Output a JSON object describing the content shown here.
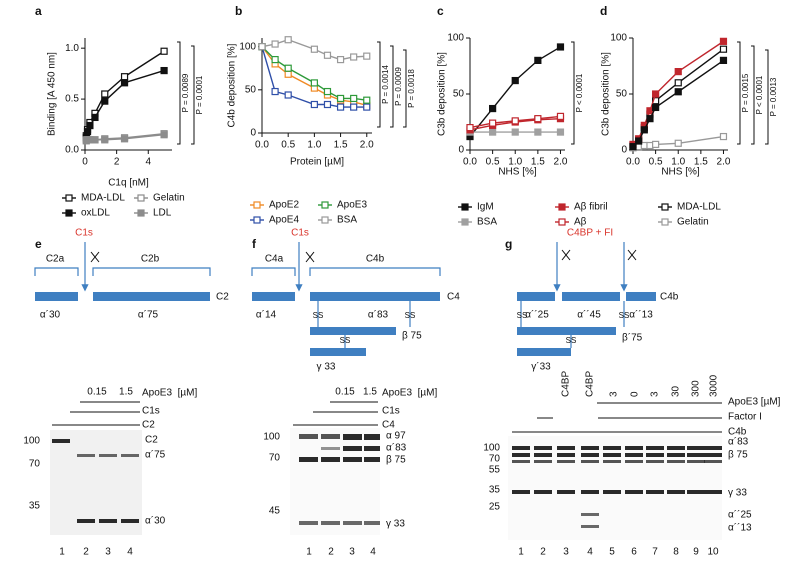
{
  "chart_data": [
    {
      "type": "line",
      "label": "a",
      "xlabel": "C1q [nM]",
      "ylabel": "Binding [A 450 nm]",
      "x": [
        0.08,
        0.16,
        0.31,
        0.63,
        1.25,
        2.5,
        5
      ],
      "xlim": [
        0,
        5.5
      ],
      "ylim": [
        0,
        1.1
      ],
      "xticks": [
        0,
        2,
        4
      ],
      "yticks": [
        {
          "value": 0,
          "label": "0.0"
        },
        0.5,
        {
          "value": 1,
          "label": "1.0"
        }
      ],
      "series": [
        {
          "name": "MDA-LDL",
          "color": "#111111",
          "markers": "open",
          "values": [
            0.14,
            0.2,
            0.27,
            0.36,
            0.55,
            0.72,
            0.97
          ]
        },
        {
          "name": "oxLDL",
          "color": "#111111",
          "markers": "filled",
          "values": [
            0.12,
            0.18,
            0.24,
            0.32,
            0.48,
            0.66,
            0.78
          ]
        },
        {
          "name": "Gelatin",
          "color": "#8c8c8c",
          "markers": "open",
          "values": [
            0.1,
            0.1,
            0.1,
            0.1,
            0.11,
            0.12,
            0.16
          ]
        },
        {
          "name": "LDL",
          "color": "#8c8c8c",
          "markers": "filled",
          "values": [
            0.09,
            0.1,
            0.1,
            0.1,
            0.1,
            0.11,
            0.15
          ]
        }
      ],
      "annotations": [
        "P = 0.0089",
        "P = 0.0001"
      ]
    },
    {
      "type": "line",
      "label": "b",
      "xlabel": "Protein [µM]",
      "ylabel": "C4b deposition [%]",
      "x": [
        0,
        0.25,
        0.5,
        1,
        1.25,
        1.5,
        1.75,
        2
      ],
      "xlim": [
        0,
        2.1
      ],
      "ylim": [
        0,
        110
      ],
      "xticks": [
        {
          "value": 0,
          "label": "0.0"
        },
        0.5,
        {
          "value": 1,
          "label": "1.0"
        },
        1.5,
        {
          "value": 2,
          "label": "2.0"
        }
      ],
      "yticks": [
        0,
        50,
        100
      ],
      "series": [
        {
          "name": "ApoE2",
          "color": "#f08a24",
          "markers": "open",
          "values": [
            100,
            80,
            68,
            52,
            44,
            38,
            36,
            32
          ]
        },
        {
          "name": "ApoE4",
          "color": "#2f4fa8",
          "markers": "open",
          "values": [
            100,
            48,
            44,
            33,
            33,
            30,
            30,
            30
          ]
        },
        {
          "name": "ApoE3",
          "color": "#2e9a3a",
          "markers": "open",
          "values": [
            100,
            85,
            75,
            58,
            48,
            40,
            40,
            38
          ]
        },
        {
          "name": "BSA",
          "color": "#999999",
          "markers": "open",
          "values": [
            100,
            103,
            108,
            97,
            90,
            85,
            88,
            89
          ]
        }
      ],
      "annotations": [
        "P = 0.0014",
        "P = 0.0009",
        "P = 0.0018"
      ]
    },
    {
      "type": "line",
      "label": "c",
      "xlabel": "NHS [%]",
      "ylabel": "C3b deposition [%]",
      "x": [
        0,
        0.5,
        1,
        1.5,
        2
      ],
      "xlim": [
        0,
        2.1
      ],
      "ylim": [
        0,
        100
      ],
      "xticks": [
        {
          "value": 0,
          "label": "0.0"
        },
        0.5,
        {
          "value": 1,
          "label": "1.0"
        },
        1.5,
        {
          "value": 2,
          "label": "2.0"
        }
      ],
      "yticks": [
        0,
        50,
        100
      ],
      "series": [
        {
          "name": "IgM",
          "color": "#111111",
          "markers": "filled",
          "values": [
            12,
            37,
            62,
            80,
            92
          ]
        },
        {
          "name": "BSA",
          "color": "#a0a0a0",
          "markers": "filled",
          "values": [
            16,
            16,
            16,
            16,
            16
          ]
        },
        {
          "name": "Aβ fibril",
          "color": "#c0262d",
          "markers": "filled",
          "values": [
            18,
            22,
            25,
            27,
            28
          ]
        },
        {
          "name": "Aβ",
          "color": "#c0262d",
          "markers": "open",
          "values": [
            20,
            24,
            26,
            28,
            30
          ]
        }
      ],
      "annotations": [
        "P < 0.0001"
      ]
    },
    {
      "type": "line",
      "label": "d",
      "xlabel": "NHS [%]",
      "ylabel": "C3b deposition [%]",
      "x": [
        0,
        0.125,
        0.25,
        0.375,
        0.5,
        1,
        2
      ],
      "xlim": [
        0,
        2.1
      ],
      "ylim": [
        0,
        100
      ],
      "xticks": [
        {
          "value": 0,
          "label": "0.0"
        },
        0.5,
        {
          "value": 1,
          "label": "1.0"
        },
        1.5,
        {
          "value": 2,
          "label": "2.0"
        }
      ],
      "yticks": [
        0,
        50,
        100
      ],
      "series": [
        {
          "name": "MDA-LDL",
          "color": "#111111",
          "markers": "open",
          "values": [
            4,
            9,
            20,
            32,
            44,
            60,
            90
          ]
        },
        {
          "name": "Gelatin",
          "color": "#999999",
          "markers": "open",
          "values": [
            2,
            3,
            4,
            4,
            5,
            6,
            12
          ]
        },
        {
          "color": "#c0262d",
          "markers": "filled",
          "values": [
            5,
            10,
            22,
            35,
            50,
            70,
            97
          ]
        },
        {
          "color": "#111111",
          "markers": "filled",
          "values": [
            3,
            8,
            18,
            28,
            38,
            52,
            80
          ]
        }
      ],
      "annotations": [
        "P = 0.0015",
        "P < 0.0001",
        "P = 0.0013"
      ]
    }
  ],
  "diagrams": {
    "e": {
      "label": "e",
      "enzyme": "C1s",
      "fragments": [
        "C2a",
        "C2b"
      ],
      "protein": "C2",
      "chains": [
        "α´30",
        "α´75"
      ]
    },
    "f": {
      "label": "f",
      "enzyme": "C1s",
      "fragments": [
        "C4a",
        "C4b"
      ],
      "protein": "C4",
      "chains": [
        "α´14",
        "α´83",
        "β 75",
        "γ 33"
      ],
      "bonds": [
        "SS",
        "SS",
        "SS"
      ]
    },
    "g": {
      "label": "g",
      "enzyme": "C4BP + FI",
      "protein": "C4b",
      "chains": [
        "α´´25",
        "α´´45",
        "α´´13",
        "β´75",
        "γ´33"
      ],
      "bonds": [
        "SS",
        "SS",
        "SS"
      ]
    }
  },
  "blots": {
    "e": {
      "concentrations": [
        0.15,
        1.5
      ],
      "treatment": "ApoE3  [µM]",
      "rows": [
        "C1s",
        "C2"
      ],
      "mw": [
        100,
        70,
        35
      ],
      "bands": [
        "C2",
        "α´75",
        "α´30"
      ],
      "lanes": [
        1,
        2,
        3,
        4
      ]
    },
    "f": {
      "concentrations": [
        0.15,
        1.5
      ],
      "treatment": "ApoE3  [µM]",
      "rows": [
        "C1s",
        "C4"
      ],
      "mw": [
        100,
        70,
        45
      ],
      "bands": [
        "α 97",
        "α´83",
        "β 75",
        "γ 33"
      ],
      "lanes": [
        1,
        2,
        3,
        4
      ]
    },
    "g": {
      "lane_headers": [
        "C4BP",
        "C4BP",
        3,
        0,
        3,
        30,
        300,
        3000
      ],
      "treatment": "ApoE3 [µM]",
      "rows": [
        "Factor I",
        "C4b"
      ],
      "mw": [
        100,
        70,
        55,
        35,
        25
      ],
      "bands": [
        "α´83",
        "β 75",
        "γ 33",
        "α´´25",
        "α´´13"
      ],
      "lanes": [
        1,
        2,
        3,
        4,
        5,
        6,
        7,
        8,
        9,
        10
      ]
    }
  }
}
